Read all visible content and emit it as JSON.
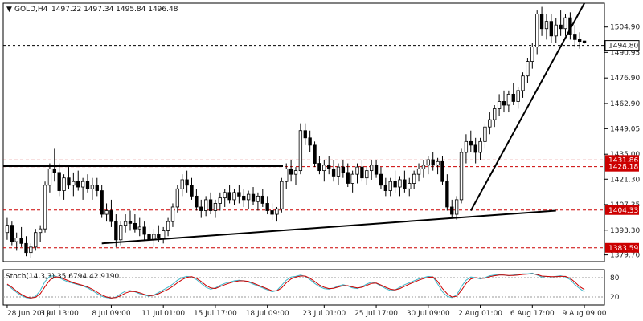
{
  "header": {
    "symbol_label": "GOLD,H4",
    "ohlc_text": "1497.22 1497.34 1495.84 1496.48"
  },
  "stoch_label": "Stoch(14,3,3) 35.6794 42.9190",
  "colors": {
    "background": "#ffffff",
    "bull_body": "#ffffff",
    "bear_body": "#000000",
    "wick": "#000000",
    "support_line": "#cc0000",
    "trendline": "#000000",
    "stoch_main": "#3fb6c8",
    "stoch_signal": "#cc0000",
    "stoch_level": "#999999",
    "current_price_line": "#000000"
  },
  "chart_data": {
    "type": "candlestick",
    "symbol": "GOLD",
    "timeframe": "H4",
    "y_range": [
      1376,
      1518
    ],
    "price_axis_ticks": [
      "1504.90",
      "1490.95",
      "1476.90",
      "1462.90",
      "1449.05",
      "1435.00",
      "1421.30",
      "1407.35",
      "1393.30",
      "1379.70"
    ],
    "time_axis_labels": [
      "28 Jun 2019",
      "3 Jul 13:00",
      "8 Jul 09:00",
      "11 Jul 01:00",
      "15 Jul 17:00",
      "18 Jul 09:00",
      "23 Jul 01:00",
      "25 Jul 17:00",
      "30 Jul 09:00",
      "2 Aug 01:00",
      "6 Aug 17:00",
      "9 Aug 09:00"
    ],
    "current_price": {
      "value": 1494.8,
      "label": "1494.80"
    },
    "horizontal_levels": [
      {
        "value": 1431.86,
        "label": "1431.86",
        "style": "dashed-red"
      },
      {
        "value": 1428.18,
        "label": "1428.18",
        "style": "dashed-red"
      },
      {
        "value": 1404.33,
        "label": "1404.33",
        "style": "dashed-red"
      },
      {
        "value": 1383.59,
        "label": "1383.59",
        "style": "dashed-red"
      }
    ],
    "resistance_line": {
      "value": 1428.5,
      "from": "28 Jun 2019",
      "to": "18 Jul 09:00"
    },
    "trendlines": [
      {
        "name": "rising support",
        "from": [
          "8 Jul 09:00",
          1386
        ],
        "to": [
          "6 Aug 17:00",
          1404
        ]
      },
      {
        "name": "steep uptrend",
        "from": [
          "31 Jul",
          1404
        ],
        "to": [
          "8 Aug",
          1518
        ]
      }
    ],
    "candles": [
      [
        1392,
        1400,
        1388,
        1396
      ],
      [
        1396,
        1398,
        1385,
        1387
      ],
      [
        1387,
        1392,
        1382,
        1389
      ],
      [
        1389,
        1395,
        1384,
        1386
      ],
      [
        1386,
        1390,
        1379,
        1381
      ],
      [
        1381,
        1386,
        1378,
        1384
      ],
      [
        1384,
        1394,
        1382,
        1392
      ],
      [
        1392,
        1396,
        1387,
        1394
      ],
      [
        1394,
        1420,
        1392,
        1418
      ],
      [
        1418,
        1430,
        1414,
        1427
      ],
      [
        1427,
        1438,
        1420,
        1425
      ],
      [
        1425,
        1430,
        1412,
        1415
      ],
      [
        1415,
        1424,
        1410,
        1422
      ],
      [
        1422,
        1428,
        1416,
        1418
      ],
      [
        1418,
        1425,
        1412,
        1420
      ],
      [
        1420,
        1426,
        1415,
        1417
      ],
      [
        1417,
        1422,
        1410,
        1420
      ],
      [
        1420,
        1424,
        1414,
        1416
      ],
      [
        1416,
        1422,
        1410,
        1418
      ],
      [
        1418,
        1422,
        1412,
        1415
      ],
      [
        1415,
        1418,
        1400,
        1402
      ],
      [
        1402,
        1408,
        1398,
        1404
      ],
      [
        1404,
        1410,
        1395,
        1398
      ],
      [
        1398,
        1402,
        1384,
        1388
      ],
      [
        1388,
        1398,
        1385,
        1396
      ],
      [
        1396,
        1402,
        1392,
        1398
      ],
      [
        1398,
        1404,
        1393,
        1397
      ],
      [
        1397,
        1402,
        1392,
        1394
      ],
      [
        1394,
        1400,
        1390,
        1395
      ],
      [
        1395,
        1398,
        1388,
        1391
      ],
      [
        1391,
        1396,
        1386,
        1388
      ],
      [
        1388,
        1394,
        1384,
        1391
      ],
      [
        1391,
        1396,
        1387,
        1389
      ],
      [
        1389,
        1395,
        1386,
        1393
      ],
      [
        1393,
        1400,
        1390,
        1398
      ],
      [
        1398,
        1408,
        1395,
        1406
      ],
      [
        1406,
        1418,
        1403,
        1416
      ],
      [
        1416,
        1424,
        1412,
        1421
      ],
      [
        1421,
        1426,
        1414,
        1418
      ],
      [
        1418,
        1422,
        1410,
        1412
      ],
      [
        1412,
        1416,
        1404,
        1406
      ],
      [
        1406,
        1410,
        1400,
        1404
      ],
      [
        1404,
        1412,
        1401,
        1410
      ],
      [
        1410,
        1414,
        1402,
        1404
      ],
      [
        1404,
        1410,
        1400,
        1408
      ],
      [
        1408,
        1414,
        1404,
        1411
      ],
      [
        1411,
        1416,
        1406,
        1414
      ],
      [
        1414,
        1418,
        1408,
        1410
      ],
      [
        1410,
        1416,
        1407,
        1414
      ],
      [
        1414,
        1418,
        1408,
        1412
      ],
      [
        1412,
        1416,
        1406,
        1410
      ],
      [
        1410,
        1415,
        1405,
        1413
      ],
      [
        1413,
        1417,
        1407,
        1409
      ],
      [
        1409,
        1414,
        1404,
        1412
      ],
      [
        1412,
        1416,
        1406,
        1408
      ],
      [
        1408,
        1412,
        1402,
        1404
      ],
      [
        1404,
        1408,
        1399,
        1402
      ],
      [
        1402,
        1406,
        1398,
        1405
      ],
      [
        1405,
        1422,
        1403,
        1420
      ],
      [
        1420,
        1430,
        1416,
        1427
      ],
      [
        1427,
        1432,
        1420,
        1424
      ],
      [
        1424,
        1428,
        1418,
        1426
      ],
      [
        1426,
        1452,
        1424,
        1448
      ],
      [
        1448,
        1452,
        1440,
        1444
      ],
      [
        1444,
        1448,
        1436,
        1440
      ],
      [
        1440,
        1442,
        1428,
        1430
      ],
      [
        1430,
        1434,
        1424,
        1426
      ],
      [
        1426,
        1432,
        1420,
        1429
      ],
      [
        1429,
        1434,
        1424,
        1427
      ],
      [
        1427,
        1432,
        1420,
        1423
      ],
      [
        1423,
        1430,
        1418,
        1428
      ],
      [
        1428,
        1432,
        1422,
        1425
      ],
      [
        1425,
        1430,
        1417,
        1419
      ],
      [
        1419,
        1426,
        1414,
        1424
      ],
      [
        1424,
        1430,
        1419,
        1428
      ],
      [
        1428,
        1432,
        1420,
        1422
      ],
      [
        1422,
        1428,
        1418,
        1426
      ],
      [
        1426,
        1432,
        1421,
        1429
      ],
      [
        1429,
        1432,
        1422,
        1424
      ],
      [
        1424,
        1428,
        1416,
        1418
      ],
      [
        1418,
        1422,
        1412,
        1415
      ],
      [
        1415,
        1422,
        1412,
        1420
      ],
      [
        1420,
        1426,
        1414,
        1417
      ],
      [
        1417,
        1423,
        1412,
        1421
      ],
      [
        1421,
        1426,
        1414,
        1416
      ],
      [
        1416,
        1422,
        1412,
        1419
      ],
      [
        1419,
        1426,
        1416,
        1424
      ],
      [
        1424,
        1430,
        1420,
        1427
      ],
      [
        1427,
        1432,
        1422,
        1429
      ],
      [
        1429,
        1434,
        1424,
        1432
      ],
      [
        1432,
        1436,
        1426,
        1429
      ],
      [
        1429,
        1433,
        1424,
        1431
      ],
      [
        1431,
        1434,
        1418,
        1420
      ],
      [
        1420,
        1424,
        1404,
        1406
      ],
      [
        1406,
        1410,
        1400,
        1402
      ],
      [
        1402,
        1412,
        1399,
        1410
      ],
      [
        1410,
        1438,
        1408,
        1436
      ],
      [
        1436,
        1446,
        1430,
        1442
      ],
      [
        1442,
        1448,
        1436,
        1440
      ],
      [
        1440,
        1444,
        1430,
        1436
      ],
      [
        1436,
        1444,
        1432,
        1442
      ],
      [
        1442,
        1452,
        1438,
        1450
      ],
      [
        1450,
        1458,
        1446,
        1454
      ],
      [
        1454,
        1462,
        1450,
        1460
      ],
      [
        1460,
        1468,
        1456,
        1464
      ],
      [
        1464,
        1470,
        1458,
        1462
      ],
      [
        1462,
        1470,
        1458,
        1468
      ],
      [
        1468,
        1474,
        1462,
        1464
      ],
      [
        1464,
        1472,
        1460,
        1470
      ],
      [
        1470,
        1480,
        1466,
        1478
      ],
      [
        1478,
        1488,
        1474,
        1486
      ],
      [
        1486,
        1496,
        1482,
        1494
      ],
      [
        1494,
        1514,
        1490,
        1512
      ],
      [
        1512,
        1516,
        1500,
        1504
      ],
      [
        1504,
        1512,
        1498,
        1508
      ],
      [
        1508,
        1512,
        1496,
        1500
      ],
      [
        1500,
        1510,
        1496,
        1506
      ],
      [
        1506,
        1514,
        1500,
        1504
      ],
      [
        1504,
        1512,
        1500,
        1510
      ],
      [
        1510,
        1513,
        1498,
        1501
      ],
      [
        1501,
        1506,
        1494,
        1498
      ],
      [
        1498,
        1502,
        1493,
        1497
      ],
      [
        1497.22,
        1497.34,
        1495.84,
        1496.48
      ]
    ],
    "stochastic": {
      "name": "Stoch(14,3,3)",
      "main_last": 35.6794,
      "signal_last": 42.919,
      "levels": [
        80,
        20
      ],
      "main": [
        58,
        46,
        34,
        24,
        18,
        16,
        22,
        40,
        68,
        84,
        86,
        80,
        72,
        66,
        62,
        58,
        54,
        48,
        40,
        30,
        22,
        18,
        16,
        20,
        30,
        38,
        40,
        36,
        30,
        26,
        22,
        26,
        34,
        42,
        50,
        60,
        72,
        80,
        84,
        82,
        74,
        62,
        50,
        44,
        48,
        56,
        62,
        66,
        70,
        72,
        70,
        66,
        60,
        54,
        48,
        42,
        36,
        40,
        56,
        72,
        82,
        84,
        88,
        84,
        74,
        62,
        52,
        46,
        44,
        48,
        54,
        58,
        54,
        48,
        46,
        52,
        60,
        66,
        62,
        54,
        46,
        40,
        42,
        50,
        58,
        64,
        70,
        76,
        80,
        84,
        82,
        60,
        36,
        22,
        18,
        26,
        52,
        72,
        82,
        80,
        76,
        80,
        86,
        88,
        90,
        88,
        86,
        88,
        90,
        92,
        92,
        94,
        88,
        82,
        84,
        82,
        84,
        86,
        82,
        74,
        58,
        46,
        36
      ],
      "signal": [
        60,
        50,
        38,
        28,
        20,
        17,
        19,
        30,
        52,
        72,
        82,
        82,
        76,
        70,
        64,
        60,
        56,
        51,
        44,
        35,
        26,
        20,
        17,
        18,
        24,
        32,
        37,
        37,
        33,
        28,
        24,
        25,
        30,
        37,
        44,
        53,
        64,
        74,
        81,
        83,
        78,
        68,
        56,
        48,
        46,
        52,
        58,
        63,
        67,
        70,
        70,
        68,
        63,
        57,
        51,
        45,
        39,
        39,
        48,
        64,
        76,
        82,
        85,
        85,
        78,
        68,
        57,
        50,
        46,
        47,
        51,
        55,
        55,
        51,
        48,
        50,
        56,
        62,
        63,
        57,
        50,
        44,
        42,
        46,
        53,
        60,
        66,
        72,
        77,
        81,
        82,
        68,
        46,
        30,
        20,
        22,
        40,
        62,
        76,
        80,
        78,
        78,
        83,
        86,
        88,
        88,
        87,
        87,
        88,
        90,
        91,
        92,
        90,
        85,
        84,
        83,
        83,
        84,
        84,
        78,
        66,
        52,
        43
      ]
    }
  }
}
